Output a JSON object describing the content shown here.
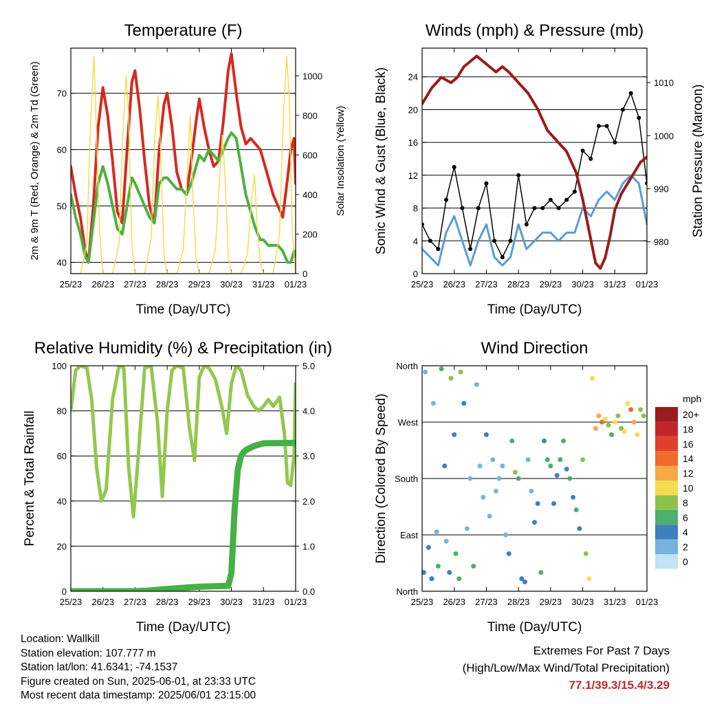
{
  "panels": {
    "temperature": {
      "title": "Temperature (F)",
      "xlabel": "Time (Day/UTC)",
      "ylabel_left": "2m & 9m T (Red, Orange) & 2m Td (Green)",
      "ylabel_right": "Solar Insolation (Yellow)"
    },
    "winds": {
      "title": "Winds (mph) & Pressure (mb)",
      "xlabel": "Time (Day/UTC)",
      "ylabel_left": "Sonic Wind & Gust (Blue, Black)",
      "ylabel_right": "Station Pressure (Maroon)"
    },
    "humidity": {
      "title": "Relative Humidity (%) & Precipitation (in)",
      "xlabel": "Time (Day/UTC)",
      "ylabel_left": "Percent & Total Rainfall"
    },
    "direction": {
      "title": "Wind Direction",
      "xlabel": "Time (Day/UTC)",
      "ylabel_left": "Direction (Colored By Speed)",
      "legend_title": "mph"
    }
  },
  "footer": {
    "location": "Location: Wallkill",
    "elevation": "Station elevation: 107.777 m",
    "latlon": "Station lat/lon: 41.6341; -74.1537",
    "created": "Figure created on Sun, 2025-06-01, at 23:33 UTC",
    "recent": "Most recent data timestamp: 2025/06/01 23:15:00",
    "extremes_title": "Extremes For Past 7 Days",
    "extremes_subtitle": "(High/Low/Max Wind/Total Precipitation)",
    "extremes_values": "77.1/39.3/15.4/3.29"
  },
  "chart_data": [
    {
      "type": "line",
      "title": "Temperature (F)",
      "xlabel": "Time (Day/UTC)",
      "ylabel": "2m & 9m T (Red, Orange) & 2m Td (Green)",
      "y2label": "Solar Insolation (Yellow)",
      "x_ticks": [
        "25/23",
        "26/23",
        "27/23",
        "28/23",
        "29/23",
        "30/23",
        "31/23",
        "01/23"
      ],
      "xlim": [
        0,
        7
      ],
      "ylim": [
        38,
        78
      ],
      "y_ticks": [
        40,
        50,
        60,
        70
      ],
      "y2lim": [
        0,
        1140
      ],
      "y2_ticks": [
        0,
        200,
        400,
        600,
        800,
        1000
      ],
      "grid": true,
      "colors": {
        "t2m": "#d62a20",
        "t9m": "#f07a22",
        "td": "#4fb040",
        "solar": "#f3dc50"
      },
      "series": [
        {
          "name": "2m T",
          "color": "#d62a20",
          "x": [
            0,
            0.15,
            0.3,
            0.45,
            0.55,
            0.7,
            0.85,
            1.0,
            1.15,
            1.3,
            1.45,
            1.6,
            1.75,
            1.9,
            2.0,
            2.15,
            2.3,
            2.45,
            2.6,
            2.75,
            2.9,
            3.0,
            3.15,
            3.3,
            3.45,
            3.6,
            3.75,
            3.9,
            4.0,
            4.15,
            4.3,
            4.45,
            4.6,
            4.75,
            4.9,
            5.0,
            5.15,
            5.3,
            5.45,
            5.6,
            5.75,
            5.9,
            6.0,
            6.15,
            6.3,
            6.45,
            6.6,
            6.75,
            6.85,
            6.95,
            7.0
          ],
          "y": [
            57,
            52,
            48,
            42,
            40,
            50,
            64,
            71,
            66,
            58,
            49,
            47,
            60,
            72,
            74,
            67,
            58,
            50,
            47,
            60,
            68,
            70,
            64,
            56,
            53,
            52,
            58,
            65,
            69,
            64,
            60,
            57,
            58,
            65,
            74,
            77,
            70,
            64,
            61,
            62,
            61,
            60,
            58,
            55,
            52,
            50,
            48,
            55,
            60,
            62,
            54
          ]
        },
        {
          "name": "2m Td",
          "color": "#4fb040",
          "x": [
            0,
            0.15,
            0.3,
            0.45,
            0.55,
            0.7,
            0.85,
            1.0,
            1.15,
            1.3,
            1.45,
            1.6,
            1.75,
            1.9,
            2.0,
            2.15,
            2.3,
            2.45,
            2.6,
            2.75,
            2.9,
            3.0,
            3.15,
            3.3,
            3.45,
            3.6,
            3.75,
            3.9,
            4.0,
            4.15,
            4.3,
            4.45,
            4.6,
            4.75,
            4.9,
            5.0,
            5.15,
            5.3,
            5.45,
            5.6,
            5.75,
            5.9,
            6.0,
            6.15,
            6.3,
            6.45,
            6.6,
            6.75,
            6.85,
            6.95,
            7.0
          ],
          "y": [
            52,
            48,
            45,
            41,
            40,
            47,
            54,
            57,
            54,
            50,
            46,
            45,
            50,
            55,
            54,
            52,
            50,
            48,
            47,
            54,
            55,
            55,
            54,
            53,
            53,
            52,
            54,
            57,
            59,
            58,
            60,
            59,
            58,
            60,
            62,
            63,
            62,
            57,
            52,
            49,
            46,
            44,
            44,
            43,
            43,
            43,
            42,
            40,
            40,
            42,
            41
          ]
        },
        {
          "name": "Solar Insolation",
          "color": "#f3dc50",
          "x": [
            0,
            0.3,
            0.5,
            0.6,
            0.72,
            0.8,
            0.9,
            1.0,
            1.3,
            1.5,
            1.62,
            1.72,
            1.8,
            1.9,
            2.0,
            2.3,
            2.5,
            2.62,
            2.72,
            2.8,
            2.9,
            3.0,
            3.3,
            3.5,
            3.62,
            3.72,
            3.8,
            3.9,
            4.0,
            4.3,
            4.5,
            4.62,
            4.72,
            4.8,
            4.9,
            5.0,
            5.3,
            5.5,
            5.62,
            5.72,
            5.8,
            5.9,
            6.0,
            6.3,
            6.5,
            6.62,
            6.72,
            6.8,
            6.9,
            7.0
          ],
          "y": [
            0,
            0,
            150,
            700,
            1100,
            700,
            200,
            0,
            0,
            150,
            700,
            1000,
            800,
            150,
            0,
            0,
            180,
            700,
            900,
            600,
            100,
            0,
            0,
            120,
            500,
            800,
            400,
            80,
            0,
            0,
            120,
            450,
            700,
            500,
            100,
            0,
            0,
            100,
            350,
            500,
            250,
            60,
            0,
            0,
            200,
            800,
            1100,
            900,
            200,
            0
          ]
        }
      ]
    },
    {
      "type": "line",
      "title": "Winds (mph) & Pressure (mb)",
      "xlabel": "Time (Day/UTC)",
      "ylabel": "Sonic Wind & Gust (Blue, Black)",
      "y2label": "Station Pressure (Maroon)",
      "x_ticks": [
        "25/23",
        "26/23",
        "27/23",
        "28/23",
        "29/23",
        "30/23",
        "31/23",
        "01/23"
      ],
      "xlim": [
        0,
        7
      ],
      "ylim": [
        0,
        27.5
      ],
      "y_ticks": [
        0,
        4,
        8,
        12,
        16,
        20,
        24
      ],
      "y2lim": [
        974,
        1016.5
      ],
      "y2_ticks": [
        980,
        990,
        1000,
        1010
      ],
      "grid": true,
      "colors": {
        "wind": "#5a9bd5",
        "gust": "#000000",
        "pressure": "#9c1b1d"
      },
      "series": [
        {
          "name": "Sonic Wind",
          "color": "#5a9bd5",
          "x": [
            0,
            0.25,
            0.5,
            0.75,
            1.0,
            1.25,
            1.5,
            1.75,
            2.0,
            2.25,
            2.5,
            2.75,
            3.0,
            3.25,
            3.5,
            3.75,
            4.0,
            4.25,
            4.5,
            4.75,
            5.0,
            5.25,
            5.5,
            5.75,
            6.0,
            6.25,
            6.5,
            6.75,
            7.0
          ],
          "y": [
            3,
            2,
            1,
            5,
            7,
            4,
            1,
            4,
            6,
            2,
            1,
            2,
            6,
            3,
            4,
            5,
            5,
            4,
            5,
            5,
            8,
            7,
            9,
            10,
            9,
            11,
            12,
            11,
            6
          ]
        },
        {
          "name": "Gust",
          "color": "#000000",
          "x": [
            0,
            0.25,
            0.5,
            0.75,
            1.0,
            1.25,
            1.5,
            1.75,
            2.0,
            2.25,
            2.5,
            2.75,
            3.0,
            3.25,
            3.5,
            3.75,
            4.0,
            4.25,
            4.5,
            4.75,
            5.0,
            5.25,
            5.5,
            5.75,
            6.0,
            6.25,
            6.5,
            6.75,
            7.0
          ],
          "y": [
            6,
            4,
            3,
            9,
            13,
            8,
            3,
            8,
            11,
            4,
            2,
            4,
            12,
            6,
            8,
            8,
            9,
            8,
            9,
            10,
            15,
            14,
            18,
            18,
            16,
            20,
            22,
            19,
            11
          ]
        },
        {
          "name": "Station Pressure",
          "color": "#9c1b1d",
          "x": [
            0,
            0.3,
            0.6,
            0.9,
            1.1,
            1.3,
            1.5,
            1.7,
            1.9,
            2.1,
            2.3,
            2.5,
            2.7,
            3.0,
            3.3,
            3.6,
            3.9,
            4.2,
            4.5,
            4.8,
            5.0,
            5.2,
            5.4,
            5.55,
            5.7,
            5.85,
            6.0,
            6.2,
            6.4,
            6.6,
            6.8,
            7.0
          ],
          "y": [
            1006,
            1009,
            1011,
            1010,
            1011,
            1013,
            1014,
            1015,
            1014,
            1013,
            1012,
            1013,
            1012,
            1010,
            1008,
            1005,
            1001,
            999,
            997,
            993,
            988,
            982,
            976,
            975,
            977,
            981,
            986,
            989,
            991,
            993,
            995,
            996
          ]
        }
      ]
    },
    {
      "type": "line",
      "title": "Relative Humidity (%) & Precipitation (in)",
      "xlabel": "Time (Day/UTC)",
      "ylabel": "Percent & Total Rainfall",
      "x_ticks": [
        "25/23",
        "26/23",
        "27/23",
        "28/23",
        "29/23",
        "30/23",
        "31/23",
        "01/23"
      ],
      "xlim": [
        0,
        7
      ],
      "ylim": [
        0,
        100
      ],
      "y_ticks": [
        0,
        20,
        40,
        60,
        80,
        100
      ],
      "y2lim": [
        0,
        5
      ],
      "y2_ticks": [
        "0.0",
        "1.0",
        "2.0",
        "3.0",
        "4.0",
        "5.0"
      ],
      "grid": true,
      "colors": {
        "rh": "#92c84c",
        "precip": "#45b044"
      },
      "series": [
        {
          "name": "Relative Humidity",
          "color": "#92c84c",
          "x": [
            0,
            0.15,
            0.3,
            0.5,
            0.65,
            0.8,
            0.95,
            1.1,
            1.3,
            1.5,
            1.65,
            1.8,
            1.95,
            2.1,
            2.3,
            2.5,
            2.7,
            2.85,
            3.0,
            3.15,
            3.3,
            3.5,
            3.7,
            3.85,
            4.0,
            4.15,
            4.3,
            4.5,
            4.7,
            4.85,
            5.0,
            5.15,
            5.3,
            5.5,
            5.7,
            5.85,
            6.0,
            6.15,
            6.3,
            6.5,
            6.65,
            6.75,
            6.85,
            6.95,
            7.0
          ],
          "y": [
            80,
            98,
            100,
            99,
            85,
            55,
            40,
            45,
            85,
            100,
            99,
            55,
            33,
            60,
            99,
            100,
            75,
            42,
            80,
            98,
            100,
            99,
            72,
            58,
            95,
            100,
            99,
            94,
            82,
            70,
            92,
            100,
            98,
            87,
            82,
            80,
            82,
            85,
            82,
            86,
            70,
            48,
            47,
            60,
            92
          ]
        },
        {
          "name": "Total Precipitation",
          "color": "#45b044",
          "x": [
            0,
            1,
            2,
            2.5,
            3.0,
            4.0,
            4.9,
            5.0,
            5.1,
            5.2,
            5.3,
            5.4,
            5.5,
            5.7,
            6.0,
            7.0
          ],
          "y": [
            0,
            0,
            0,
            0.02,
            0.05,
            0.1,
            0.12,
            0.4,
            1.8,
            2.7,
            3.0,
            3.1,
            3.15,
            3.22,
            3.28,
            3.29
          ]
        }
      ]
    },
    {
      "type": "scatter",
      "title": "Wind Direction",
      "xlabel": "Time (Day/UTC)",
      "ylabel": "Direction (Colored By Speed)",
      "x_ticks": [
        "25/23",
        "26/23",
        "27/23",
        "28/23",
        "29/23",
        "30/23",
        "31/23",
        "01/23"
      ],
      "xlim": [
        0,
        7
      ],
      "ylim": [
        0,
        360
      ],
      "y_ticks": [
        "North",
        "East",
        "South",
        "West",
        "North"
      ],
      "grid": true,
      "colorbar": {
        "title": "mph",
        "labels": [
          "20+",
          "18",
          "16",
          "14",
          "12",
          "10",
          "8",
          "6",
          "4",
          "2",
          "0"
        ],
        "colors": [
          "#9c1b1d",
          "#c4252c",
          "#e0402b",
          "#f06a2c",
          "#f9a845",
          "#f3dc50",
          "#8bc34a",
          "#4caf6b",
          "#3f7fbf",
          "#78b3e0",
          "#bfe3f7"
        ]
      },
      "points": {
        "x": [
          0.05,
          0.1,
          0.2,
          0.3,
          0.35,
          0.45,
          0.5,
          0.6,
          0.7,
          0.75,
          0.85,
          0.9,
          1.0,
          1.05,
          1.15,
          1.2,
          1.3,
          1.4,
          1.5,
          1.6,
          1.7,
          1.8,
          1.9,
          2.0,
          2.1,
          2.2,
          2.3,
          2.4,
          2.5,
          2.6,
          2.7,
          2.8,
          2.9,
          3.0,
          3.1,
          3.2,
          3.3,
          3.4,
          3.5,
          3.6,
          3.7,
          3.8,
          3.9,
          4.0,
          4.1,
          4.2,
          4.3,
          4.4,
          4.5,
          4.6,
          4.7,
          4.8,
          4.9,
          5.0,
          5.1,
          5.2,
          5.3,
          5.4,
          5.5,
          5.6,
          5.7,
          5.8,
          5.9,
          6.0,
          6.1,
          6.2,
          6.3,
          6.4,
          6.5,
          6.6,
          6.7,
          6.8,
          6.9
        ],
        "y": [
          30,
          350,
          70,
          20,
          300,
          95,
          40,
          355,
          200,
          80,
          30,
          340,
          250,
          60,
          20,
          350,
          300,
          100,
          180,
          40,
          330,
          200,
          150,
          250,
          120,
          210,
          160,
          180,
          200,
          90,
          60,
          240,
          190,
          180,
          20,
          15,
          210,
          160,
          110,
          140,
          30,
          240,
          210,
          200,
          140,
          185,
          210,
          240,
          195,
          180,
          150,
          130,
          100,
          210,
          60,
          20,
          340,
          260,
          280,
          270,
          275,
          265,
          250,
          270,
          280,
          260,
          255,
          300,
          290,
          270,
          250,
          290,
          280
        ],
        "speed": [
          3,
          2,
          4,
          3,
          1,
          2,
          5,
          6,
          3,
          2,
          4,
          7,
          3,
          6,
          5,
          8,
          4,
          2,
          1,
          5,
          1,
          2,
          1,
          3,
          2,
          1,
          1,
          2,
          1,
          2,
          3,
          5,
          7,
          6,
          4,
          3,
          2,
          1,
          3,
          4,
          5,
          4,
          5,
          6,
          3,
          4,
          5,
          6,
          4,
          5,
          3,
          5,
          4,
          8,
          7,
          9,
          10,
          11,
          12,
          14,
          9,
          8,
          6,
          9,
          7,
          8,
          9,
          10,
          14,
          12,
          10,
          8,
          7
        ]
      }
    }
  ]
}
